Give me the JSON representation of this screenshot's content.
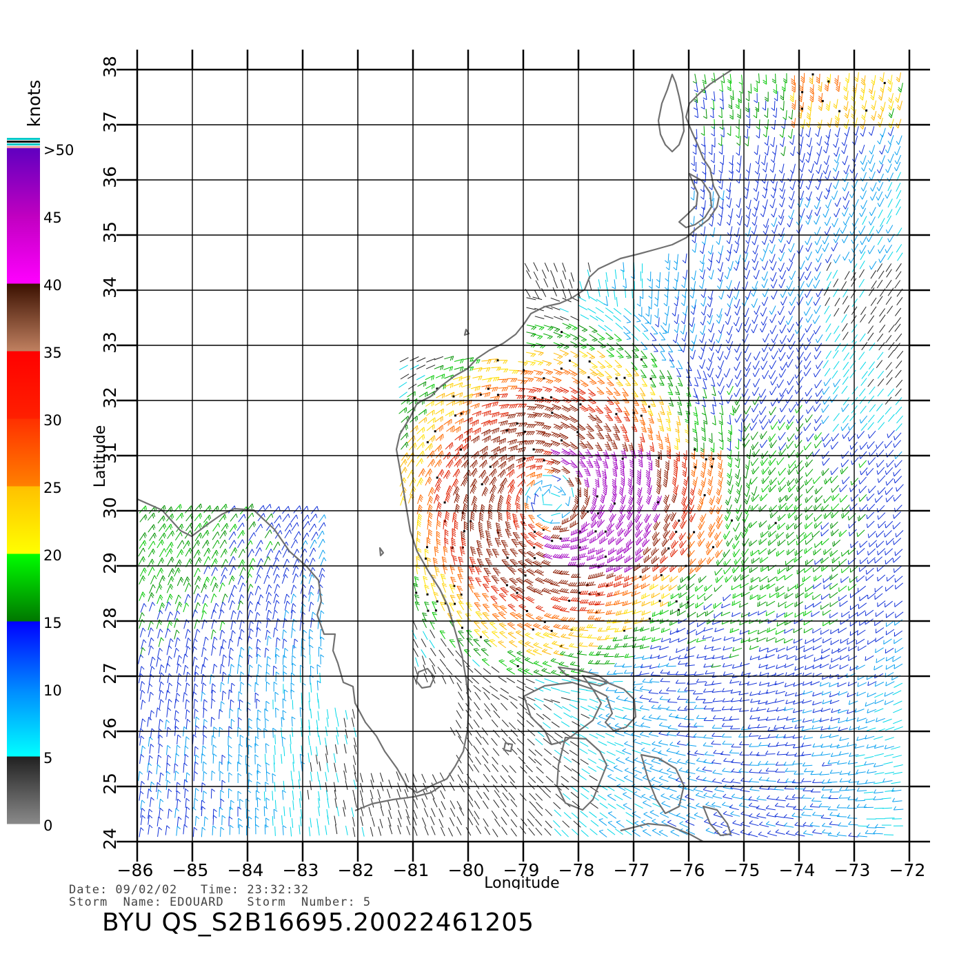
{
  "map": {
    "xlabel": "Longitude",
    "ylabel": "Latitude",
    "lon_range": [
      -86,
      -72
    ],
    "lat_range": [
      24,
      38
    ],
    "x_ticks": [
      "-86",
      "-85",
      "-84",
      "-83",
      "-82",
      "-81",
      "-80",
      "-79",
      "-78",
      "-77",
      "-76",
      "-75",
      "-74",
      "-73",
      "-72"
    ],
    "y_ticks": [
      "24",
      "25",
      "26",
      "27",
      "28",
      "29",
      "30",
      "31",
      "32",
      "33",
      "34",
      "35",
      "36",
      "37",
      "38"
    ],
    "grid": true,
    "storm_center": {
      "lon": -78.5,
      "lat": 30.2
    },
    "colors": {
      "land_outline": "#707070",
      "grid": "#000000"
    }
  },
  "legend": {
    "unit": "knots",
    "labels": [
      "0",
      "5",
      "10",
      "15",
      "20",
      "25",
      "30",
      "35",
      "40",
      "45",
      ">50"
    ],
    "bands": [
      {
        "from": 0,
        "to": 5,
        "colors": [
          "#8a8a8a",
          "#202020"
        ]
      },
      {
        "from": 5,
        "to": 10,
        "colors": [
          "#00ffff",
          "#0088ff"
        ]
      },
      {
        "from": 10,
        "to": 15,
        "colors": [
          "#0088ff",
          "#0000ff"
        ]
      },
      {
        "from": 15,
        "to": 20,
        "colors": [
          "#007700",
          "#00ff00"
        ]
      },
      {
        "from": 20,
        "to": 25,
        "colors": [
          "#ffff00",
          "#ffc000"
        ]
      },
      {
        "from": 25,
        "to": 30,
        "colors": [
          "#ff8000",
          "#ff3000"
        ]
      },
      {
        "from": 30,
        "to": 35,
        "colors": [
          "#ff2000",
          "#ff0000"
        ]
      },
      {
        "from": 35,
        "to": 40,
        "colors": [
          "#c08060",
          "#3a1000"
        ]
      },
      {
        "from": 40,
        "to": 45,
        "colors": [
          "#ff00ff",
          "#c000c0"
        ]
      },
      {
        "from": 45,
        "to": 50,
        "colors": [
          "#c000c0",
          "#6000c0"
        ]
      }
    ]
  },
  "footer": {
    "line1": "Date: 09/02/02   Time: 23:32:32",
    "line2": "Storm  Name: EDOUARD   Storm  Number: 5",
    "id": "BYU  QS_S2B16695.20022461205"
  }
}
